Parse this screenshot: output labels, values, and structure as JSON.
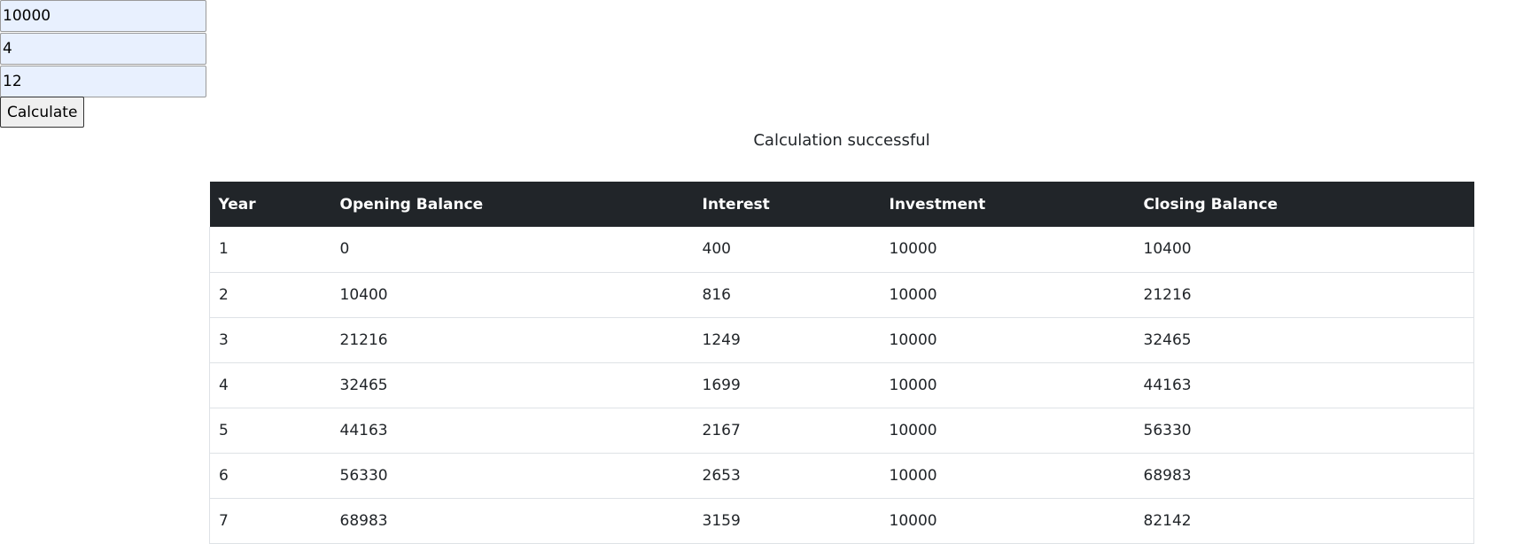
{
  "form": {
    "amount_value": "10000",
    "rate_value": "4",
    "years_value": "12",
    "calculate_label": "Calculate"
  },
  "status": {
    "message": "Calculation successful"
  },
  "table": {
    "headers": [
      "Year",
      "Opening Balance",
      "Interest",
      "Investment",
      "Closing Balance"
    ],
    "rows": [
      [
        "1",
        "0",
        "400",
        "10000",
        "10400"
      ],
      [
        "2",
        "10400",
        "816",
        "10000",
        "21216"
      ],
      [
        "3",
        "21216",
        "1249",
        "10000",
        "32465"
      ],
      [
        "4",
        "32465",
        "1699",
        "10000",
        "44163"
      ],
      [
        "5",
        "44163",
        "2167",
        "10000",
        "56330"
      ],
      [
        "6",
        "56330",
        "2653",
        "10000",
        "68983"
      ],
      [
        "7",
        "68983",
        "3159",
        "10000",
        "82142"
      ]
    ]
  },
  "colors": {
    "header_bg": "#212529",
    "input_bg": "#e8f0fe",
    "row_border": "#dee2e6"
  }
}
